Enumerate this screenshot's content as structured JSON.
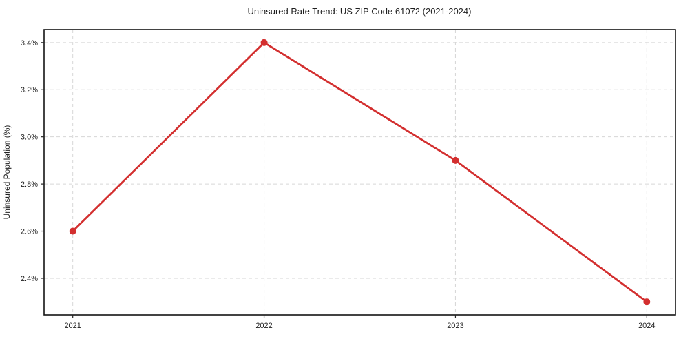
{
  "chart_data": {
    "type": "line",
    "title": "Uninsured Rate Trend: US ZIP Code 61072 (2021-2024)",
    "xlabel": "",
    "ylabel": "Uninsured Population (%)",
    "x": [
      2021,
      2022,
      2023,
      2024
    ],
    "series": [
      {
        "name": "Uninsured rate",
        "values": [
          2.6,
          3.4,
          2.9,
          2.3
        ]
      }
    ],
    "xticks": {
      "values": [
        2021,
        2022,
        2023,
        2024
      ],
      "labels": [
        "2021",
        "2022",
        "2023",
        "2024"
      ]
    },
    "yticks": {
      "values": [
        2.4,
        2.6,
        2.8,
        3.0,
        3.2,
        3.4
      ],
      "labels": [
        "2.4%",
        "2.6%",
        "2.8%",
        "3.0%",
        "3.2%",
        "3.4%"
      ]
    },
    "xlim": [
      2020.85,
      2024.15
    ],
    "ylim": [
      2.245,
      3.455
    ],
    "grid": true,
    "legend": "none",
    "marker": "circle",
    "marker_radius": 5,
    "colors": {
      "line": "#d32f2f",
      "marker": "#d32f2f",
      "grid": "#d6d6d6",
      "spine": "#141414",
      "text": "#1f1f1f",
      "background": "#ffffff"
    }
  }
}
